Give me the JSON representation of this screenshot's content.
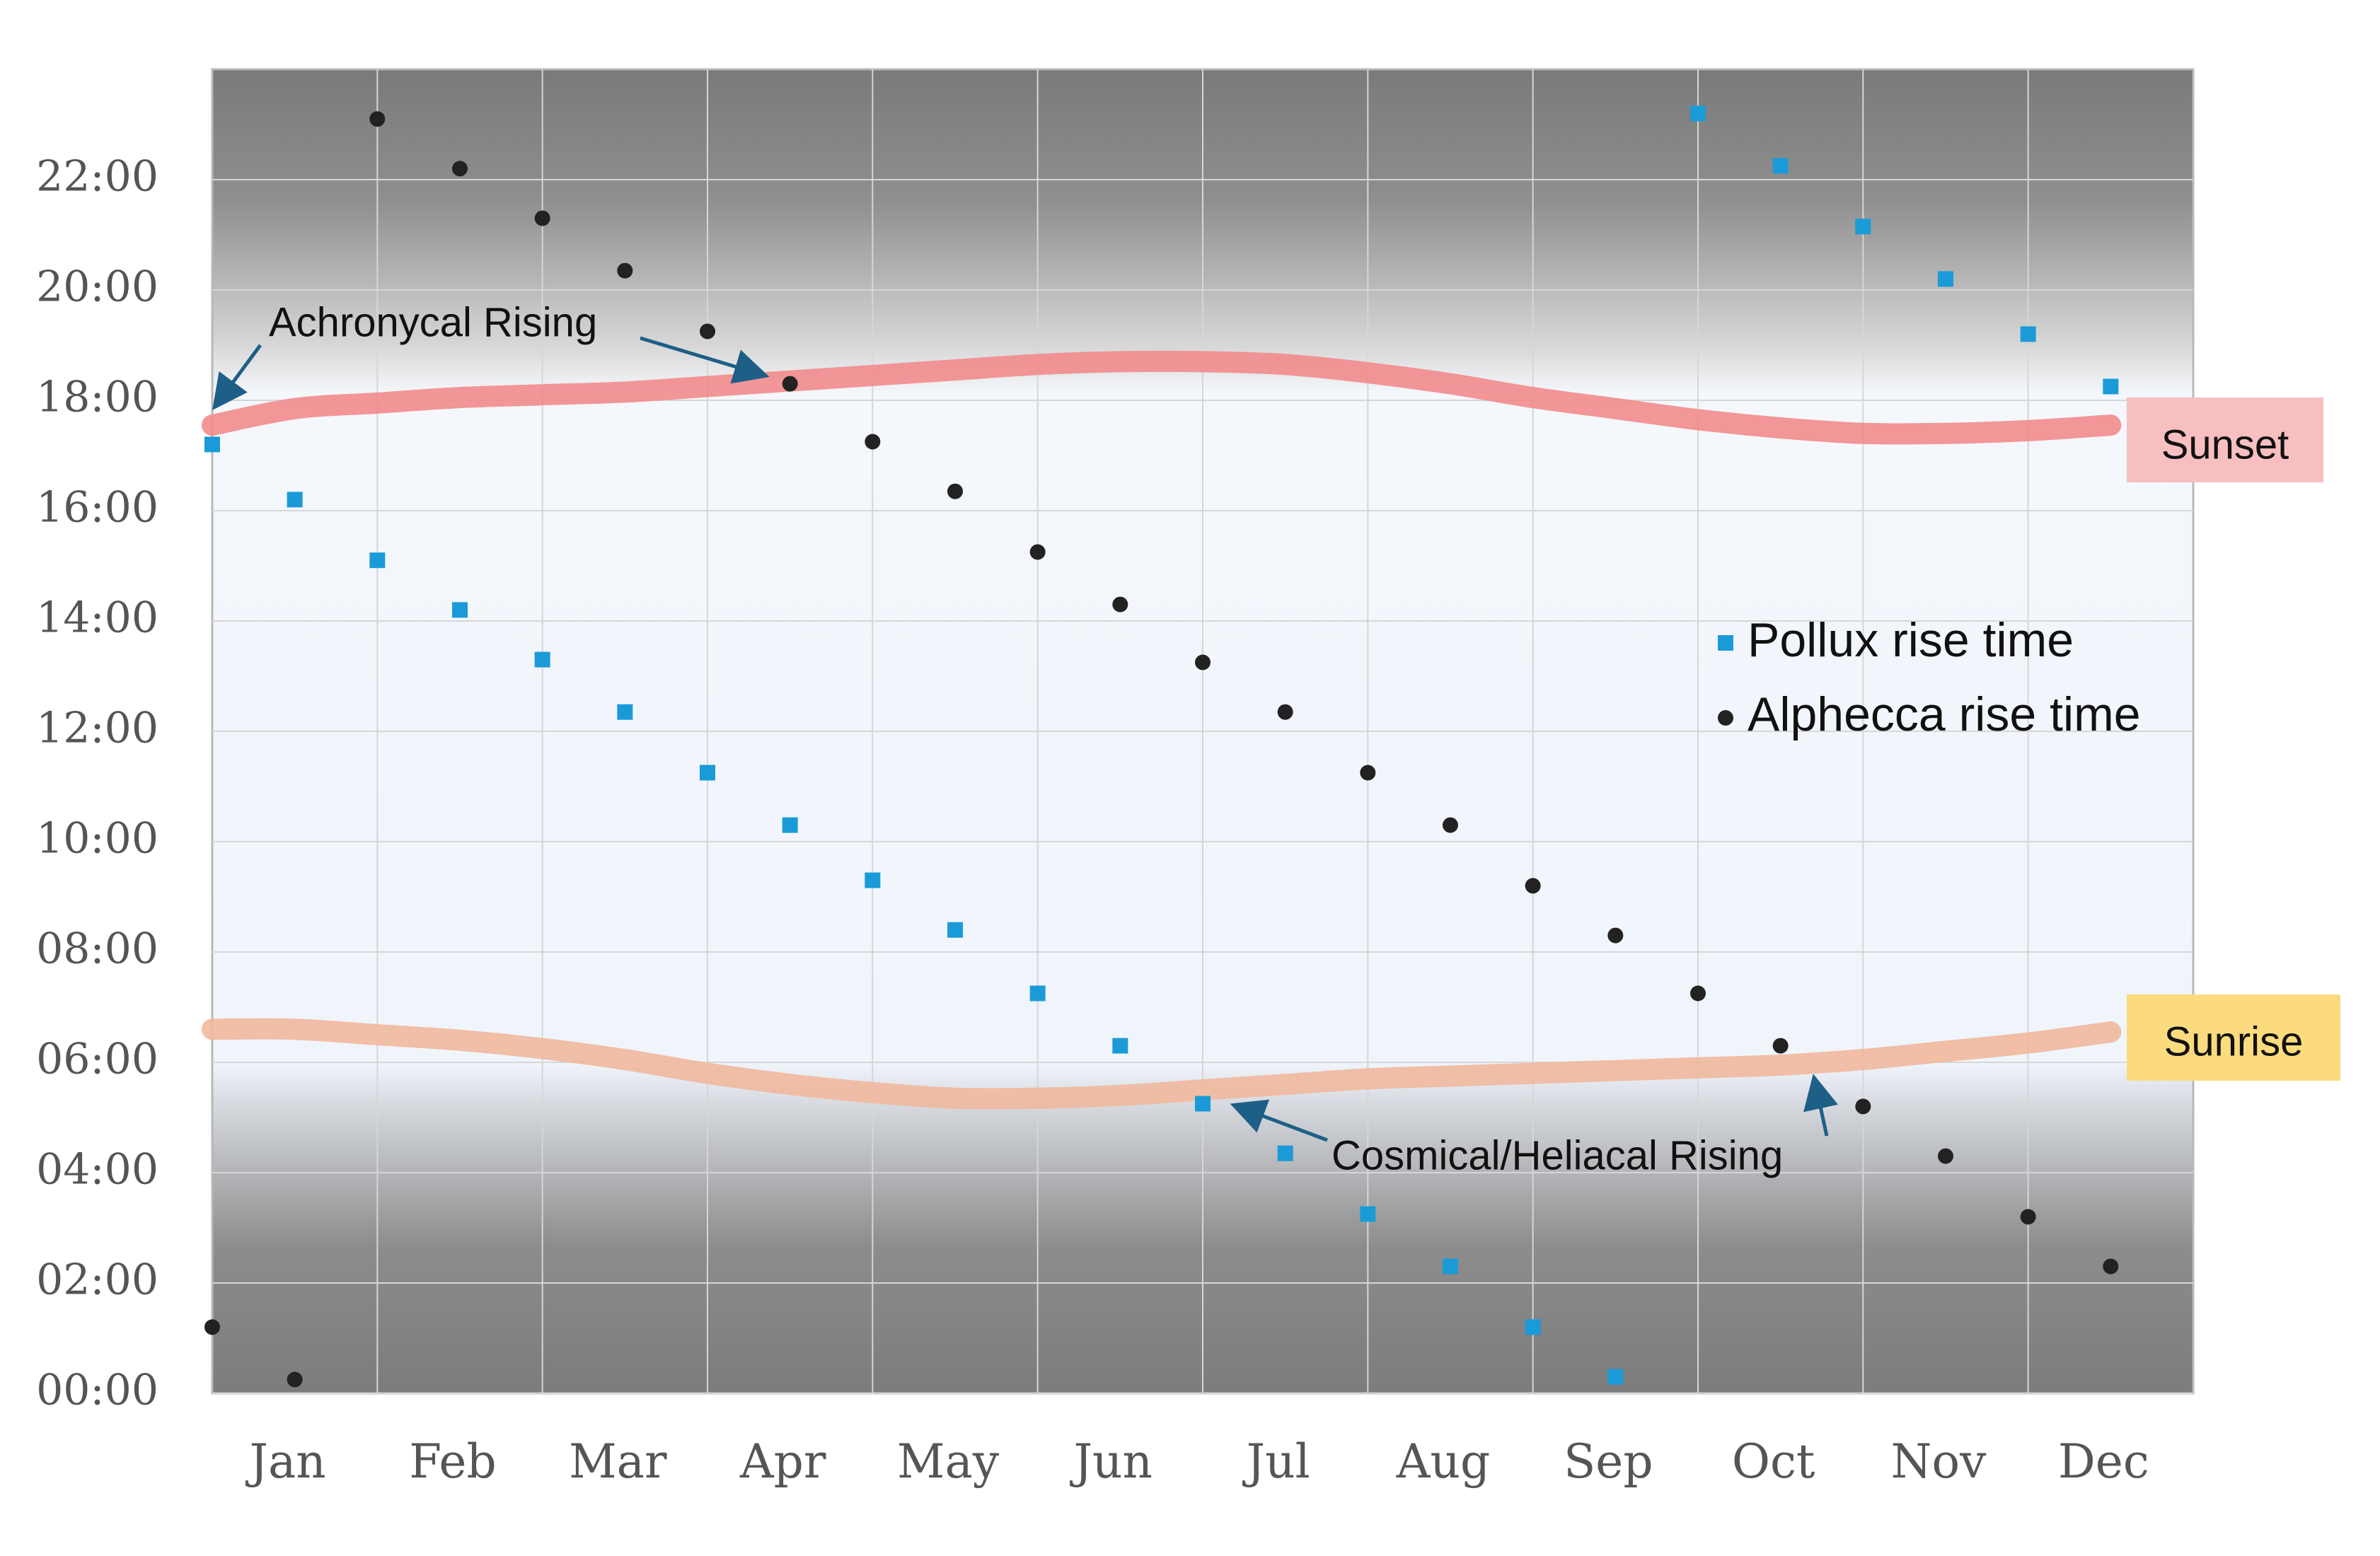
{
  "chart_data": {
    "type": "scatter",
    "title": "",
    "xlabel": "",
    "ylabel": "",
    "months": [
      "Jan",
      "Feb",
      "Mar",
      "Apr",
      "May",
      "Jun",
      "Jul",
      "Aug",
      "Sep",
      "Oct",
      "Nov",
      "Dec"
    ],
    "y_ticks": [
      "00:00",
      "02:00",
      "04:00",
      "06:00",
      "08:00",
      "10:00",
      "12:00",
      "14:00",
      "16:00",
      "18:00",
      "20:00",
      "22:00"
    ],
    "ylim": [
      0,
      24
    ],
    "xlim": [
      0,
      12
    ],
    "grid": true,
    "series": [
      {
        "name": "Pollux rise time",
        "marker": "square",
        "color": "#1a9bd7",
        "x": [
          0,
          0.5,
          1,
          1.5,
          2,
          2.5,
          3,
          3.5,
          4,
          4.5,
          5,
          5.5,
          6,
          6.5,
          7,
          7.5,
          8,
          8.5,
          9,
          9.5,
          10,
          10.5,
          11,
          11.5
        ],
        "y": [
          17.2,
          16.2,
          15.1,
          14.2,
          13.3,
          12.35,
          11.25,
          10.3,
          9.3,
          8.4,
          7.25,
          6.3,
          5.25,
          4.35,
          3.25,
          2.3,
          1.2,
          0.3,
          23.2,
          22.25,
          21.15,
          20.2,
          19.2,
          18.25
        ]
      },
      {
        "name": "Alphecca rise time",
        "marker": "circle",
        "color": "#222222",
        "x": [
          0,
          0.5,
          1,
          1.5,
          2,
          2.5,
          3,
          3.5,
          4,
          4.5,
          5,
          5.5,
          6,
          6.5,
          7,
          7.5,
          8,
          8.5,
          9,
          9.5,
          10,
          10.5,
          11,
          11.5
        ],
        "y": [
          1.2,
          0.25,
          23.1,
          22.2,
          21.3,
          20.35,
          19.25,
          18.3,
          17.25,
          16.35,
          15.25,
          14.3,
          13.25,
          12.35,
          11.25,
          10.3,
          9.2,
          8.3,
          7.25,
          6.3,
          5.2,
          4.3,
          3.2,
          2.3
        ]
      }
    ],
    "curves": [
      {
        "name": "Sunset",
        "color": "#f28b8d",
        "x": [
          0,
          0.5,
          1,
          1.5,
          2,
          2.5,
          3,
          3.5,
          4,
          4.5,
          5,
          5.5,
          6,
          6.5,
          7,
          7.5,
          8,
          8.5,
          9,
          9.5,
          10,
          10.5,
          11,
          11.5
        ],
        "y": [
          17.55,
          17.85,
          17.95,
          18.05,
          18.1,
          18.15,
          18.25,
          18.35,
          18.45,
          18.55,
          18.65,
          18.7,
          18.7,
          18.65,
          18.5,
          18.3,
          18.05,
          17.85,
          17.65,
          17.5,
          17.4,
          17.4,
          17.45,
          17.55
        ]
      },
      {
        "name": "Sunrise",
        "color": "#f1b89d",
        "x": [
          0,
          0.5,
          1,
          1.5,
          2,
          2.5,
          3,
          3.5,
          4,
          4.5,
          5,
          5.5,
          6,
          6.5,
          7,
          7.5,
          8,
          8.5,
          9,
          9.5,
          10,
          10.5,
          11,
          11.5
        ],
        "y": [
          6.6,
          6.6,
          6.5,
          6.4,
          6.25,
          6.05,
          5.8,
          5.6,
          5.45,
          5.35,
          5.35,
          5.4,
          5.5,
          5.6,
          5.7,
          5.75,
          5.8,
          5.85,
          5.9,
          5.95,
          6.05,
          6.2,
          6.35,
          6.55
        ]
      }
    ],
    "legend": {
      "placement": "right-middle",
      "items": [
        "Pollux rise time",
        "Alphecca rise time"
      ]
    },
    "labels": {
      "sunset": "Sunset",
      "sunrise": "Sunrise"
    },
    "annotations": [
      {
        "text": "Achronycal Rising"
      },
      {
        "text": "Cosmical/Heliacal Rising"
      }
    ]
  },
  "colors": {
    "pollux": "#1a9bd7",
    "alphecca": "#222222",
    "sunset_line": "#f28b8d",
    "sunrise_line": "#f1b89d",
    "sunset_tag": "#f7bfc0",
    "sunrise_tag": "#fbdb7e",
    "arrow": "#1d5f86"
  }
}
